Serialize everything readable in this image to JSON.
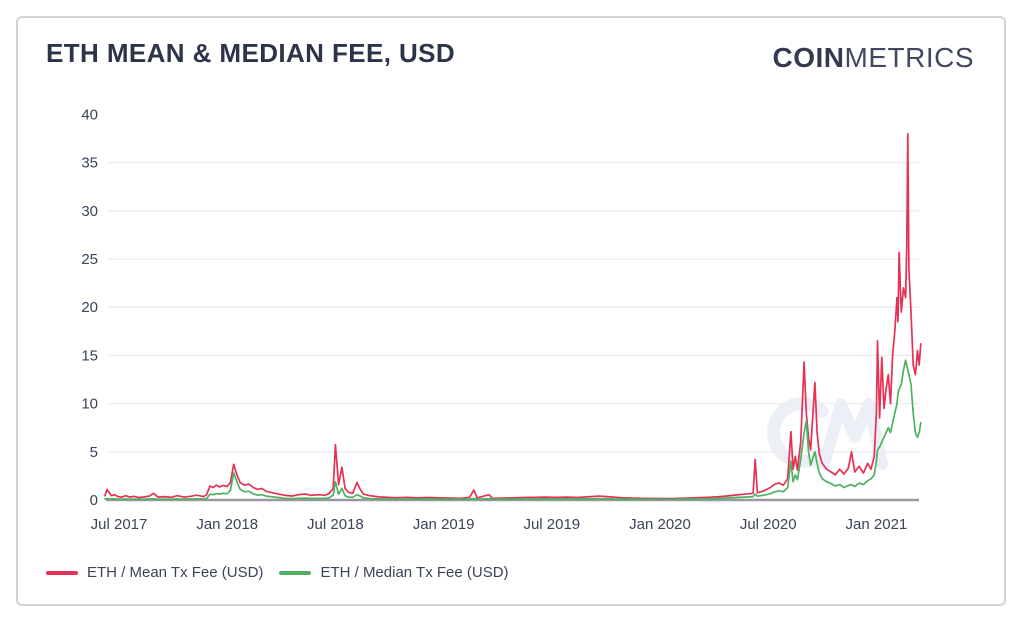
{
  "header": {
    "title": "ETH MEAN & MEDIAN FEE, USD",
    "logo": {
      "bold": "COIN",
      "light": "METRICS"
    }
  },
  "legend": {
    "items": [
      {
        "label": "ETH / Mean Tx Fee (USD)",
        "color": "#e73154"
      },
      {
        "label": "ETH / Median Tx Fee (USD)",
        "color": "#4fb061"
      }
    ]
  },
  "colors": {
    "mean": "#e73154",
    "median": "#4fb061",
    "title_text": "#2d3449",
    "axis_text": "#3b4356",
    "gridline": "#ebedf1",
    "axis_line": "#97999e",
    "card_border": "#cfd3da",
    "watermark": "#edeff6"
  },
  "chart_data": {
    "type": "line",
    "title": "ETH MEAN & MEDIAN FEE, USD",
    "xlabel": "",
    "ylabel": "",
    "grid": "horizontal-only",
    "legend_position": "bottom-left",
    "ylim": [
      0,
      40
    ],
    "y_ticks": [
      0,
      5,
      10,
      15,
      20,
      25,
      30,
      35,
      40
    ],
    "x_ticks": [
      {
        "label": "Jul 2017",
        "t": 2017.5
      },
      {
        "label": "Jan 2018",
        "t": 2018.0
      },
      {
        "label": "Jul 2018",
        "t": 2018.5
      },
      {
        "label": "Jan 2019",
        "t": 2019.0
      },
      {
        "label": "Jul 2019",
        "t": 2019.5
      },
      {
        "label": "Jan 2020",
        "t": 2020.0
      },
      {
        "label": "Jul 2020",
        "t": 2020.5
      },
      {
        "label": "Jan 2021",
        "t": 2021.0
      }
    ],
    "series": [
      {
        "name": "ETH / Mean Tx Fee (USD)",
        "color": "#e73154",
        "column": 1
      },
      {
        "name": "ETH / Median Tx Fee (USD)",
        "color": "#4fb061",
        "column": 2
      }
    ],
    "points_format": [
      "decimal_year",
      "mean_fee_usd",
      "median_fee_usd"
    ],
    "points": [
      [
        2017.435,
        0.45,
        0.1
      ],
      [
        2017.445,
        1.1,
        0.15
      ],
      [
        2017.455,
        0.75,
        0.12
      ],
      [
        2017.465,
        0.45,
        0.1
      ],
      [
        2017.48,
        0.55,
        0.12
      ],
      [
        2017.495,
        0.35,
        0.09
      ],
      [
        2017.51,
        0.28,
        0.08
      ],
      [
        2017.53,
        0.45,
        0.1
      ],
      [
        2017.55,
        0.3,
        0.08
      ],
      [
        2017.57,
        0.38,
        0.09
      ],
      [
        2017.59,
        0.25,
        0.07
      ],
      [
        2017.61,
        0.3,
        0.08
      ],
      [
        2017.64,
        0.4,
        0.1
      ],
      [
        2017.66,
        0.7,
        0.12
      ],
      [
        2017.68,
        0.3,
        0.08
      ],
      [
        2017.71,
        0.35,
        0.09
      ],
      [
        2017.74,
        0.28,
        0.08
      ],
      [
        2017.77,
        0.45,
        0.1
      ],
      [
        2017.8,
        0.3,
        0.09
      ],
      [
        2017.83,
        0.38,
        0.1
      ],
      [
        2017.86,
        0.5,
        0.12
      ],
      [
        2017.89,
        0.35,
        0.1
      ],
      [
        2017.905,
        0.55,
        0.15
      ],
      [
        2017.92,
        1.45,
        0.6
      ],
      [
        2017.935,
        1.3,
        0.55
      ],
      [
        2017.95,
        1.55,
        0.65
      ],
      [
        2017.965,
        1.35,
        0.6
      ],
      [
        2017.98,
        1.5,
        0.7
      ],
      [
        2018.0,
        1.4,
        0.65
      ],
      [
        2018.015,
        1.8,
        1.0
      ],
      [
        2018.03,
        3.7,
        2.8
      ],
      [
        2018.045,
        2.6,
        1.9
      ],
      [
        2018.06,
        1.8,
        1.1
      ],
      [
        2018.08,
        1.55,
        0.85
      ],
      [
        2018.1,
        1.65,
        0.9
      ],
      [
        2018.12,
        1.3,
        0.65
      ],
      [
        2018.14,
        1.1,
        0.5
      ],
      [
        2018.16,
        1.2,
        0.55
      ],
      [
        2018.18,
        0.9,
        0.4
      ],
      [
        2018.21,
        0.75,
        0.32
      ],
      [
        2018.24,
        0.6,
        0.25
      ],
      [
        2018.27,
        0.48,
        0.18
      ],
      [
        2018.3,
        0.42,
        0.15
      ],
      [
        2018.33,
        0.55,
        0.18
      ],
      [
        2018.36,
        0.62,
        0.2
      ],
      [
        2018.39,
        0.48,
        0.16
      ],
      [
        2018.42,
        0.55,
        0.18
      ],
      [
        2018.45,
        0.5,
        0.18
      ],
      [
        2018.47,
        0.65,
        0.22
      ],
      [
        2018.49,
        1.2,
        0.5
      ],
      [
        2018.5,
        5.75,
        1.9
      ],
      [
        2018.515,
        1.6,
        0.6
      ],
      [
        2018.53,
        3.4,
        1.2
      ],
      [
        2018.545,
        1.2,
        0.45
      ],
      [
        2018.56,
        0.8,
        0.3
      ],
      [
        2018.58,
        0.7,
        0.28
      ],
      [
        2018.6,
        1.8,
        0.55
      ],
      [
        2018.615,
        1.1,
        0.4
      ],
      [
        2018.63,
        0.6,
        0.22
      ],
      [
        2018.66,
        0.45,
        0.15
      ],
      [
        2018.7,
        0.32,
        0.12
      ],
      [
        2018.74,
        0.28,
        0.1
      ],
      [
        2018.78,
        0.24,
        0.09
      ],
      [
        2018.83,
        0.28,
        0.1
      ],
      [
        2018.88,
        0.22,
        0.09
      ],
      [
        2018.93,
        0.26,
        0.1
      ],
      [
        2018.98,
        0.22,
        0.09
      ],
      [
        2019.03,
        0.2,
        0.08
      ],
      [
        2019.08,
        0.18,
        0.08
      ],
      [
        2019.12,
        0.28,
        0.09
      ],
      [
        2019.14,
        1.05,
        0.15
      ],
      [
        2019.155,
        0.22,
        0.09
      ],
      [
        2019.21,
        0.55,
        0.12
      ],
      [
        2019.225,
        0.18,
        0.08
      ],
      [
        2019.27,
        0.2,
        0.09
      ],
      [
        2019.32,
        0.22,
        0.09
      ],
      [
        2019.37,
        0.26,
        0.1
      ],
      [
        2019.42,
        0.28,
        0.11
      ],
      [
        2019.47,
        0.3,
        0.12
      ],
      [
        2019.52,
        0.28,
        0.11
      ],
      [
        2019.57,
        0.3,
        0.12
      ],
      [
        2019.62,
        0.26,
        0.1
      ],
      [
        2019.67,
        0.34,
        0.13
      ],
      [
        2019.72,
        0.4,
        0.14
      ],
      [
        2019.77,
        0.32,
        0.11
      ],
      [
        2019.82,
        0.24,
        0.09
      ],
      [
        2019.87,
        0.2,
        0.08
      ],
      [
        2019.92,
        0.18,
        0.08
      ],
      [
        2019.97,
        0.16,
        0.07
      ],
      [
        2020.02,
        0.15,
        0.07
      ],
      [
        2020.07,
        0.16,
        0.08
      ],
      [
        2020.12,
        0.2,
        0.1
      ],
      [
        2020.17,
        0.24,
        0.12
      ],
      [
        2020.22,
        0.28,
        0.14
      ],
      [
        2020.27,
        0.34,
        0.17
      ],
      [
        2020.31,
        0.42,
        0.21
      ],
      [
        2020.35,
        0.52,
        0.26
      ],
      [
        2020.39,
        0.6,
        0.3
      ],
      [
        2020.43,
        0.7,
        0.35
      ],
      [
        2020.44,
        4.2,
        0.6
      ],
      [
        2020.45,
        0.75,
        0.4
      ],
      [
        2020.48,
        0.95,
        0.5
      ],
      [
        2020.51,
        1.3,
        0.65
      ],
      [
        2020.53,
        1.65,
        0.85
      ],
      [
        2020.55,
        1.75,
        0.95
      ],
      [
        2020.57,
        1.55,
        0.85
      ],
      [
        2020.59,
        2.2,
        1.3
      ],
      [
        2020.605,
        7.1,
        4.0
      ],
      [
        2020.615,
        3.2,
        1.9
      ],
      [
        2020.625,
        4.5,
        2.6
      ],
      [
        2020.635,
        3.1,
        2.1
      ],
      [
        2020.65,
        6.0,
        4.2
      ],
      [
        2020.666,
        14.3,
        7.0
      ],
      [
        2020.676,
        9.0,
        8.2
      ],
      [
        2020.686,
        6.5,
        5.0
      ],
      [
        2020.696,
        5.2,
        3.6
      ],
      [
        2020.716,
        12.2,
        5.0
      ],
      [
        2020.726,
        7.0,
        3.8
      ],
      [
        2020.736,
        4.8,
        2.8
      ],
      [
        2020.75,
        3.8,
        2.2
      ],
      [
        2020.77,
        3.2,
        1.9
      ],
      [
        2020.79,
        2.9,
        1.7
      ],
      [
        2020.81,
        2.6,
        1.45
      ],
      [
        2020.83,
        3.2,
        1.6
      ],
      [
        2020.85,
        2.7,
        1.3
      ],
      [
        2020.87,
        3.3,
        1.5
      ],
      [
        2020.885,
        5.0,
        1.6
      ],
      [
        2020.9,
        2.9,
        1.4
      ],
      [
        2020.92,
        3.5,
        1.75
      ],
      [
        2020.94,
        2.8,
        1.6
      ],
      [
        2020.96,
        3.8,
        2.0
      ],
      [
        2020.975,
        3.2,
        2.2
      ],
      [
        2020.99,
        4.5,
        2.6
      ],
      [
        2021.0,
        9.0,
        4.0
      ],
      [
        2021.005,
        16.5,
        5.2
      ],
      [
        2021.015,
        8.5,
        5.5
      ],
      [
        2021.025,
        14.8,
        6.0
      ],
      [
        2021.035,
        9.5,
        6.5
      ],
      [
        2021.045,
        11.5,
        7.0
      ],
      [
        2021.055,
        13.0,
        7.5
      ],
      [
        2021.065,
        10.0,
        7.0
      ],
      [
        2021.075,
        15.0,
        8.0
      ],
      [
        2021.085,
        17.5,
        9.0
      ],
      [
        2021.095,
        21.0,
        10.0
      ],
      [
        2021.1,
        18.5,
        11.0
      ],
      [
        2021.105,
        25.7,
        11.5
      ],
      [
        2021.115,
        19.5,
        12.0
      ],
      [
        2021.125,
        22.0,
        13.5
      ],
      [
        2021.135,
        21.0,
        14.5
      ],
      [
        2021.14,
        26.0,
        14.0
      ],
      [
        2021.145,
        38.0,
        13.5
      ],
      [
        2021.15,
        24.0,
        13.0
      ],
      [
        2021.16,
        19.5,
        12.0
      ],
      [
        2021.17,
        14.0,
        9.0
      ],
      [
        2021.18,
        13.0,
        7.0
      ],
      [
        2021.19,
        15.5,
        6.5
      ],
      [
        2021.198,
        14.0,
        7.0
      ],
      [
        2021.205,
        16.2,
        8.0
      ]
    ]
  }
}
